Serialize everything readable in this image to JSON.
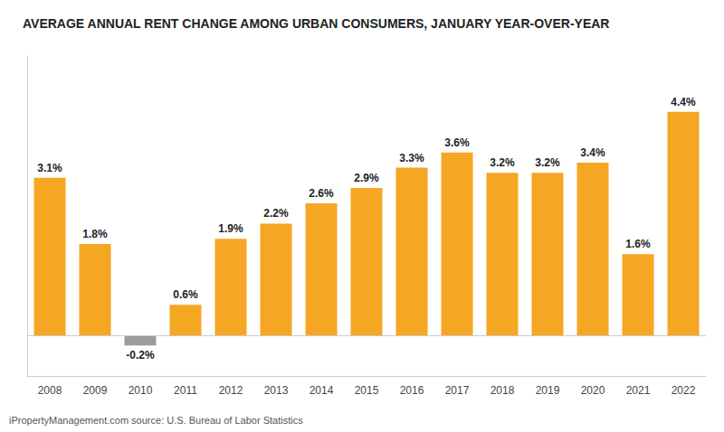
{
  "chart_data": {
    "type": "bar",
    "title": "AVERAGE ANNUAL RENT CHANGE AMONG URBAN CONSUMERS, JANUARY YEAR-OVER-YEAR",
    "annotations": [
      "iPropertyManagement.com source: U.S. Bureau of Labor Statistics"
    ],
    "categories": [
      "2008",
      "2009",
      "2010",
      "2011",
      "2012",
      "2013",
      "2014",
      "2015",
      "2016",
      "2017",
      "2018",
      "2019",
      "2020",
      "2021",
      "2022"
    ],
    "values": [
      3.1,
      1.8,
      -0.2,
      0.6,
      1.9,
      2.2,
      2.6,
      2.9,
      3.3,
      3.6,
      3.2,
      3.2,
      3.4,
      1.6,
      4.4
    ],
    "value_labels": [
      "3.1%",
      "1.8%",
      "-0.2%",
      "0.6%",
      "1.9%",
      "2.2%",
      "2.6%",
      "2.9%",
      "3.3%",
      "3.6%",
      "3.2%",
      "3.2%",
      "3.4%",
      "1.6%",
      "4.4%"
    ],
    "colors": [
      "#F5A623",
      "#F5A623",
      "#9B9B9B",
      "#F5A623",
      "#F5A623",
      "#F5A623",
      "#F5A623",
      "#F5A623",
      "#F5A623",
      "#F5A623",
      "#F5A623",
      "#F5A623",
      "#F5A623",
      "#F5A623",
      "#F5A623"
    ],
    "ylim": [
      -0.8,
      5.5
    ],
    "data_labels": true,
    "tick_labels": "x",
    "grid": false
  }
}
